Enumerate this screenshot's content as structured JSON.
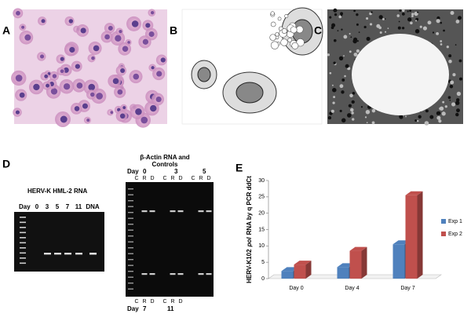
{
  "panels": {
    "a": "A",
    "b": "B",
    "c": "C",
    "d": "D",
    "e": "E"
  },
  "gel1": {
    "title": "HERV-K  HML-2 RNA",
    "lanes": [
      "Day",
      "0",
      "3",
      "5",
      "7",
      "11",
      "DNA"
    ]
  },
  "gel2": {
    "title_line1": "β-Actin RNA and",
    "title_line2": "Controls",
    "days_top": [
      "Day",
      "0",
      "3",
      "5"
    ],
    "lanes_top": [
      "C",
      "R",
      "D",
      "C",
      "R",
      "D",
      "C",
      "R",
      "D"
    ],
    "lanes_bottom": [
      "C",
      "R",
      "D",
      "C",
      "R",
      "D"
    ],
    "days_bottom": [
      "Day",
      "7",
      "11"
    ]
  },
  "chart_data": {
    "type": "bar3d",
    "ylabel": [
      "HERV-K102",
      "pol",
      "RNA by  q PCR ddCt"
    ],
    "categories": [
      "Day 0",
      "Day 4",
      "Day 7"
    ],
    "series": [
      {
        "name": "Exp 1",
        "color": "#4f81bd",
        "values": [
          2.3,
          3.5,
          10.5
        ]
      },
      {
        "name": "Exp 2",
        "color": "#c0504d",
        "values": [
          4.3,
          8.5,
          25.5
        ]
      }
    ],
    "ylim": [
      0,
      30
    ],
    "yticks": [
      0,
      5,
      10,
      15,
      20,
      25,
      30
    ],
    "legend": "right"
  }
}
